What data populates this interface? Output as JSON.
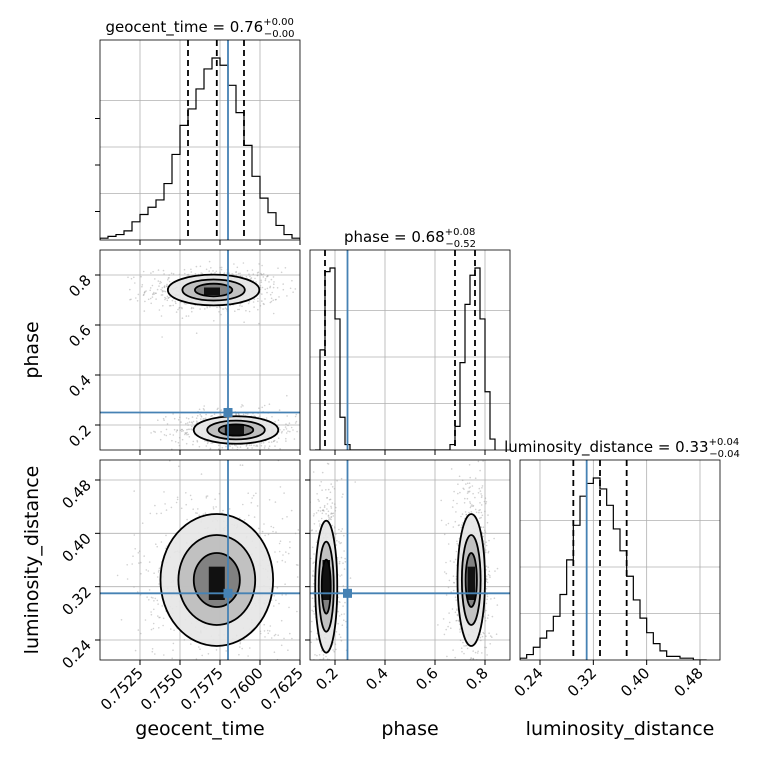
{
  "chart_data": {
    "type": "corner",
    "parameters": [
      "geocent_time",
      "phase",
      "luminosity_distance"
    ],
    "axis_labels": {
      "geocent_time": "geocent_time",
      "phase": "phase",
      "luminosity_distance": "luminosity_distance"
    },
    "ranges": {
      "geocent_time": [
        0.75,
        0.7625
      ],
      "phase": [
        0.1,
        0.9
      ],
      "luminosity_distance": [
        0.21,
        0.51
      ]
    },
    "ticks": {
      "geocent_time": [
        0.7525,
        0.755,
        0.7575,
        0.76,
        0.7625
      ],
      "phase": [
        0.2,
        0.4,
        0.6,
        0.8
      ],
      "luminosity_distance": [
        0.24,
        0.32,
        0.4,
        0.48
      ]
    },
    "tick_labels": {
      "geocent_time": [
        "0.7525",
        "0.7550",
        "0.7575",
        "0.7600",
        "0.7625"
      ],
      "phase": [
        "0.2",
        "0.4",
        "0.6",
        "0.8"
      ],
      "luminosity_distance": [
        "0.24",
        "0.32",
        "0.40",
        "0.48"
      ]
    },
    "truths": {
      "geocent_time": 0.758,
      "phase": 0.25,
      "luminosity_distance": 0.31
    },
    "titles": [
      {
        "param": "geocent_time",
        "text": "geocent_time = 0.76",
        "sup": "+0.00",
        "sub": "−0.00"
      },
      {
        "param": "phase",
        "text": "phase = 0.68",
        "sup": "+0.08",
        "sub": "−0.52"
      },
      {
        "param": "luminosity_distance",
        "text": "luminosity_distance = 0.33",
        "sup": "+0.04",
        "sub": "−0.04"
      }
    ],
    "quantiles": {
      "geocent_time": [
        0.7555,
        0.7573,
        0.759
      ],
      "phase": [
        0.16,
        0.68,
        0.76
      ],
      "luminosity_distance": [
        0.29,
        0.33,
        0.37
      ]
    },
    "histograms": {
      "geocent_time": {
        "bin_edges": [
          0.75,
          0.7505,
          0.751,
          0.7515,
          0.752,
          0.7525,
          0.753,
          0.7535,
          0.754,
          0.7545,
          0.755,
          0.7555,
          0.756,
          0.7565,
          0.757,
          0.7575,
          0.758,
          0.7585,
          0.759,
          0.7595,
          0.76,
          0.7605,
          0.761,
          0.7615,
          0.762,
          0.7625
        ],
        "counts": [
          0.01,
          0.02,
          0.03,
          0.05,
          0.1,
          0.14,
          0.18,
          0.22,
          0.31,
          0.47,
          0.63,
          0.72,
          0.83,
          0.94,
          1.0,
          0.96,
          0.85,
          0.7,
          0.52,
          0.35,
          0.23,
          0.15,
          0.08,
          0.03,
          0.01
        ]
      },
      "phase": {
        "bin_edges": [
          0.12,
          0.14,
          0.16,
          0.18,
          0.2,
          0.22,
          0.24,
          0.26,
          0.28,
          0.3,
          0.32,
          0.34,
          0.36,
          0.38,
          0.4,
          0.42,
          0.44,
          0.46,
          0.48,
          0.5,
          0.52,
          0.54,
          0.56,
          0.58,
          0.6,
          0.62,
          0.64,
          0.66,
          0.68,
          0.7,
          0.72,
          0.74,
          0.76,
          0.78,
          0.8,
          0.82,
          0.84
        ],
        "counts": [
          0.0,
          0.55,
          0.98,
          1.0,
          0.72,
          0.18,
          0.03,
          0.0,
          0.0,
          0.0,
          0.0,
          0.0,
          0.0,
          0.0,
          0.0,
          0.0,
          0.0,
          0.0,
          0.0,
          0.0,
          0.0,
          0.0,
          0.0,
          0.0,
          0.0,
          0.0,
          0.0,
          0.03,
          0.13,
          0.48,
          0.8,
          0.96,
          1.0,
          0.72,
          0.32,
          0.06
        ]
      },
      "luminosity_distance": {
        "bin_edges": [
          0.21,
          0.22,
          0.23,
          0.24,
          0.25,
          0.26,
          0.27,
          0.28,
          0.29,
          0.3,
          0.31,
          0.32,
          0.33,
          0.34,
          0.35,
          0.36,
          0.37,
          0.38,
          0.39,
          0.4,
          0.41,
          0.42,
          0.43,
          0.44,
          0.45,
          0.46,
          0.47,
          0.48,
          0.49
        ],
        "counts": [
          0.01,
          0.03,
          0.07,
          0.12,
          0.16,
          0.24,
          0.36,
          0.55,
          0.74,
          0.9,
          0.97,
          1.0,
          0.94,
          0.85,
          0.72,
          0.6,
          0.46,
          0.33,
          0.23,
          0.15,
          0.09,
          0.05,
          0.02,
          0.02,
          0.01,
          0.01,
          0.0,
          0.0
        ]
      }
    },
    "density_2d": [
      {
        "x": "geocent_time",
        "y": "phase",
        "modes": [
          {
            "x": 0.7571,
            "y": 0.74,
            "sx": 0.0013,
            "sy": 0.028
          },
          {
            "x": 0.7585,
            "y": 0.18,
            "sx": 0.0012,
            "sy": 0.025
          }
        ],
        "contour_levels": [
          0.12,
          0.4,
          0.75
        ],
        "core_cells": [
          {
            "x": 0.7565,
            "y": 0.72,
            "w": 0.001,
            "h": 0.03
          },
          {
            "x": 0.7578,
            "y": 0.16,
            "w": 0.0012,
            "h": 0.04
          }
        ]
      },
      {
        "x": "geocent_time",
        "y": "luminosity_distance",
        "modes": [
          {
            "x": 0.7573,
            "y": 0.33,
            "sx": 0.0016,
            "sy": 0.045
          }
        ],
        "contour_levels": [
          0.12,
          0.4,
          0.75
        ],
        "core_cells": [
          {
            "x": 0.7568,
            "y": 0.3,
            "w": 0.001,
            "h": 0.05
          }
        ]
      },
      {
        "x": "phase",
        "y": "luminosity_distance",
        "modes": [
          {
            "x": 0.165,
            "y": 0.32,
            "sx": 0.02,
            "sy": 0.045
          },
          {
            "x": 0.745,
            "y": 0.33,
            "sx": 0.025,
            "sy": 0.045
          }
        ],
        "contour_levels": [
          0.12,
          0.4,
          0.75
        ],
        "core_cells": [
          {
            "x": 0.15,
            "y": 0.3,
            "w": 0.03,
            "h": 0.06
          },
          {
            "x": 0.73,
            "y": 0.3,
            "w": 0.03,
            "h": 0.05
          }
        ]
      }
    ],
    "colors": {
      "truth": "#4682b4",
      "histogram": "#000000",
      "quantile": "#000000",
      "grid": "#b0b0b0",
      "scatter": "#999999"
    },
    "grid": true
  }
}
